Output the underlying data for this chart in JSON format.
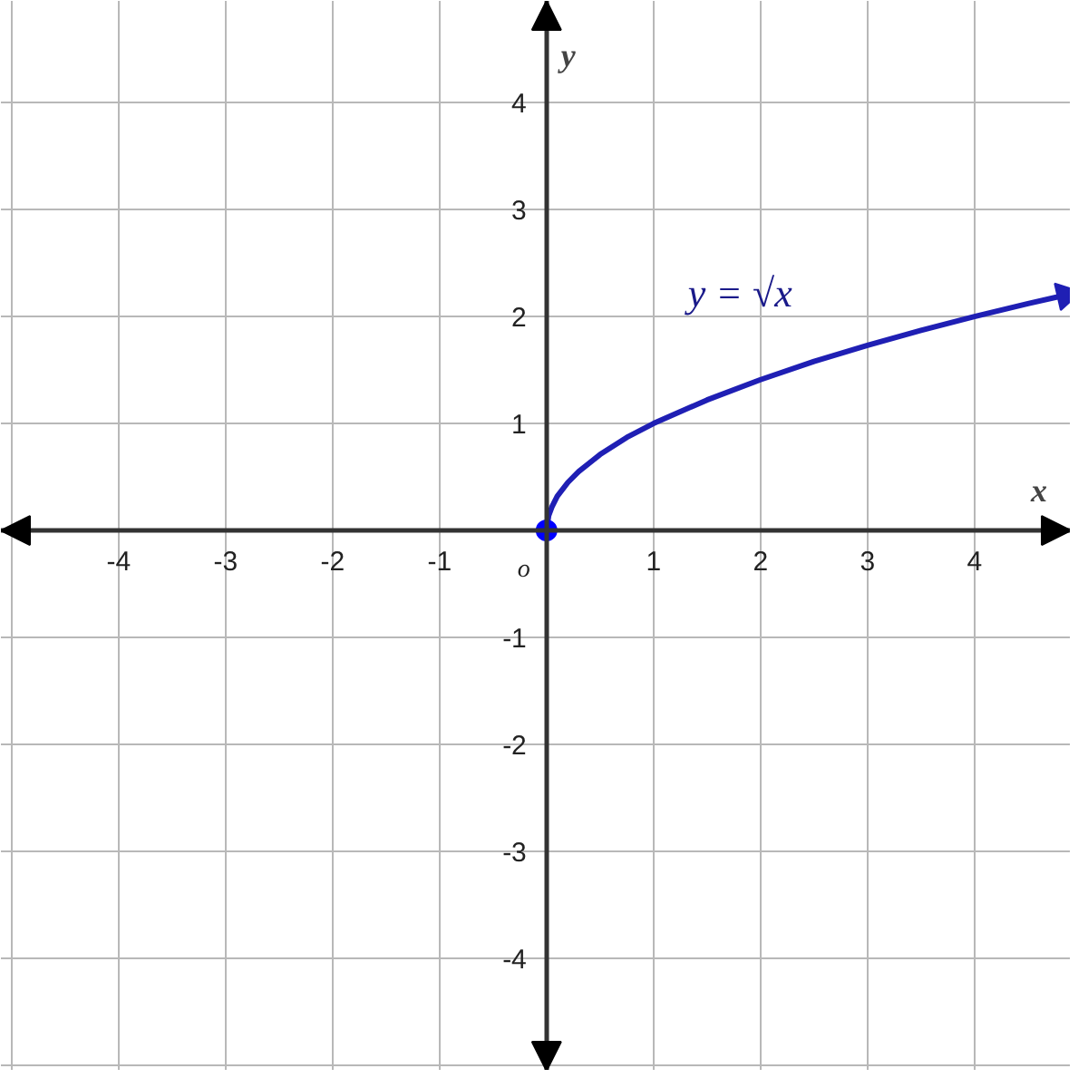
{
  "chart_data": {
    "type": "line",
    "xlabel": "x",
    "ylabel": "y",
    "xlim": [
      -5.1,
      4.9
    ],
    "ylim": [
      -5.05,
      4.95
    ],
    "xticks": [
      -4,
      -3,
      -2,
      -1,
      1,
      2,
      3,
      4
    ],
    "yticks": [
      -4,
      -3,
      -2,
      -1,
      1,
      2,
      3,
      4
    ],
    "grid": true,
    "marker": "none",
    "line_style": "solid",
    "annotations": [
      "y = √x",
      "o"
    ],
    "series": [
      {
        "color": "#1f1fb4",
        "x": [
          0,
          0.02,
          0.05,
          0.1,
          0.2,
          0.3,
          0.5,
          0.75,
          1,
          1.5,
          2,
          2.5,
          3,
          3.5,
          4,
          4.5,
          4.85
        ],
        "values": [
          0,
          0.14,
          0.22,
          0.32,
          0.45,
          0.55,
          0.71,
          0.87,
          1,
          1.22,
          1.41,
          1.58,
          1.73,
          1.87,
          2,
          2.12,
          2.2
        ]
      },
      {
        "type": "scatter",
        "color": "#0000ff",
        "x": [
          0
        ],
        "values": [
          0
        ],
        "marker": "circle"
      }
    ]
  }
}
